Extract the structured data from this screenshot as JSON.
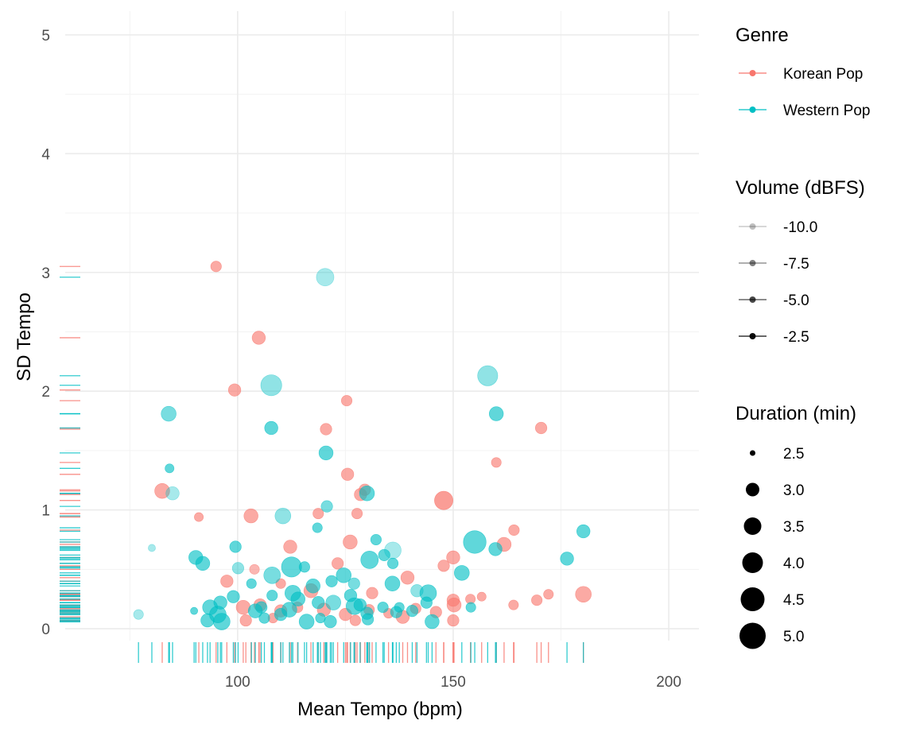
{
  "chart_data": {
    "type": "scatter",
    "xlabel": "Mean Tempo (bpm)",
    "ylabel": "SD Tempo",
    "xlim": [
      60,
      207
    ],
    "ylim": [
      -0.1,
      5.2
    ],
    "x_ticks": [
      100,
      150,
      200
    ],
    "x_tick_labels": [
      "100",
      "150",
      "200"
    ],
    "y_ticks": [
      0,
      1,
      2,
      3,
      4,
      5
    ],
    "y_tick_labels": [
      "0",
      "1",
      "2",
      "3",
      "4",
      "5"
    ],
    "grid": true,
    "colors": {
      "Korean Pop": "#F8766D",
      "Western Pop": "#00BFC4"
    },
    "legend": {
      "genre": {
        "title": "Genre",
        "entries": [
          {
            "label": "Korean Pop",
            "color": "#F8766D"
          },
          {
            "label": "Western Pop",
            "color": "#00BFC4"
          }
        ]
      },
      "volume": {
        "title": "Volume (dBFS)",
        "entries": [
          {
            "label": "-10.0",
            "value": -10.0
          },
          {
            "label": "-7.5",
            "value": -7.5
          },
          {
            "label": "-5.0",
            "value": -5.0
          },
          {
            "label": "-2.5",
            "value": -2.5
          }
        ]
      },
      "duration": {
        "title": "Duration (min)",
        "entries": [
          {
            "label": "2.5",
            "value": 2.5
          },
          {
            "label": "3.0",
            "value": 3.0
          },
          {
            "label": "3.5",
            "value": 3.5
          },
          {
            "label": "4.0",
            "value": 4.0
          },
          {
            "label": "4.5",
            "value": 4.5
          },
          {
            "label": "5.0",
            "value": 5.0
          }
        ]
      }
    },
    "series": [
      {
        "name": "Korean Pop",
        "points": [
          [
            95.0,
            3.05,
            3.1,
            -6
          ],
          [
            104.9,
            2.45,
            3.4,
            -6
          ],
          [
            99.3,
            2.01,
            3.3,
            -6
          ],
          [
            125.3,
            1.92,
            3.1,
            -6
          ],
          [
            120.5,
            1.68,
            3.2,
            -6
          ],
          [
            170.4,
            1.69,
            3.2,
            -6
          ],
          [
            160.0,
            1.4,
            3.0,
            -6
          ],
          [
            125.5,
            1.3,
            3.3,
            -6
          ],
          [
            82.5,
            1.16,
            3.6,
            -6
          ],
          [
            129.5,
            1.17,
            3.2,
            -6
          ],
          [
            128.5,
            1.13,
            3.3,
            -6
          ],
          [
            147.8,
            1.08,
            4.0,
            -5
          ],
          [
            103.1,
            0.95,
            3.5,
            -6
          ],
          [
            91.0,
            0.94,
            2.9,
            -6
          ],
          [
            118.7,
            0.97,
            3.1,
            -6
          ],
          [
            127.7,
            0.97,
            3.1,
            -6
          ],
          [
            164.1,
            0.83,
            3.1,
            -6
          ],
          [
            126.1,
            0.73,
            3.5,
            -6
          ],
          [
            161.8,
            0.71,
            3.5,
            -6
          ],
          [
            112.2,
            0.69,
            3.4,
            -6
          ],
          [
            150.0,
            0.6,
            3.4,
            -6
          ],
          [
            123.2,
            0.55,
            3.2,
            -6
          ],
          [
            147.8,
            0.53,
            3.2,
            -6
          ],
          [
            103.9,
            0.5,
            3.0,
            -7
          ],
          [
            139.4,
            0.43,
            3.4,
            -6
          ],
          [
            97.5,
            0.4,
            3.3,
            -6
          ],
          [
            110.0,
            0.38,
            3.0,
            -6
          ],
          [
            131.2,
            0.3,
            3.2,
            -6
          ],
          [
            117.0,
            0.32,
            3.5,
            -6
          ],
          [
            172.1,
            0.29,
            3.0,
            -6
          ],
          [
            180.2,
            0.29,
            3.7,
            -6
          ],
          [
            169.4,
            0.24,
            3.1,
            -6
          ],
          [
            156.6,
            0.27,
            2.9,
            -6
          ],
          [
            154.0,
            0.25,
            3.0,
            -6
          ],
          [
            150.0,
            0.24,
            3.3,
            -6
          ],
          [
            164.0,
            0.2,
            3.0,
            -6
          ],
          [
            150.2,
            0.2,
            3.5,
            -6
          ],
          [
            101.3,
            0.18,
            3.5,
            -6
          ],
          [
            105.2,
            0.2,
            3.3,
            -6
          ],
          [
            110.0,
            0.15,
            3.3,
            -6
          ],
          [
            113.9,
            0.18,
            3.1,
            -6
          ],
          [
            120.0,
            0.16,
            3.4,
            -6
          ],
          [
            125.0,
            0.12,
            3.3,
            -6
          ],
          [
            130.5,
            0.16,
            3.1,
            -6
          ],
          [
            138.3,
            0.1,
            3.4,
            -6
          ],
          [
            141.3,
            0.17,
            3.1,
            -6
          ],
          [
            146.0,
            0.14,
            3.2,
            -6
          ],
          [
            101.9,
            0.07,
            3.2,
            -6
          ],
          [
            108.2,
            0.09,
            3.0,
            -6
          ],
          [
            127.3,
            0.07,
            3.1,
            -6
          ],
          [
            150.0,
            0.07,
            3.2,
            -6
          ],
          [
            135.0,
            0.13,
            3.0,
            -6
          ]
        ]
      },
      {
        "name": "Western Pop",
        "points": [
          [
            120.3,
            2.96,
            3.9,
            -9
          ],
          [
            107.8,
            2.05,
            4.3,
            -8
          ],
          [
            158.0,
            2.13,
            4.2,
            -8
          ],
          [
            84.0,
            1.81,
            3.6,
            -7
          ],
          [
            107.8,
            1.69,
            3.4,
            -6
          ],
          [
            160.0,
            1.81,
            3.5,
            -6
          ],
          [
            120.5,
            1.48,
            3.5,
            -6
          ],
          [
            84.2,
            1.35,
            2.9,
            -6
          ],
          [
            84.9,
            1.14,
            3.4,
            -9
          ],
          [
            130.0,
            1.14,
            3.6,
            -6
          ],
          [
            120.7,
            1.03,
            3.2,
            -7
          ],
          [
            110.5,
            0.95,
            3.7,
            -8
          ],
          [
            118.5,
            0.85,
            3.0,
            -6
          ],
          [
            80.1,
            0.68,
            2.7,
            -9
          ],
          [
            99.5,
            0.69,
            3.2,
            -6
          ],
          [
            132.1,
            0.75,
            3.1,
            -6
          ],
          [
            136.0,
            0.66,
            3.8,
            -9
          ],
          [
            155.0,
            0.73,
            4.5,
            -6
          ],
          [
            159.8,
            0.67,
            3.4,
            -6
          ],
          [
            180.2,
            0.82,
            3.4,
            -6
          ],
          [
            90.3,
            0.6,
            3.5,
            -6
          ],
          [
            91.9,
            0.55,
            3.5,
            -6
          ],
          [
            130.6,
            0.58,
            3.9,
            -6
          ],
          [
            176.4,
            0.59,
            3.4,
            -6
          ],
          [
            134.0,
            0.62,
            3.2,
            -6
          ],
          [
            100.1,
            0.51,
            3.2,
            -8
          ],
          [
            108.0,
            0.45,
            3.8,
            -7
          ],
          [
            112.5,
            0.52,
            4.2,
            -6
          ],
          [
            115.5,
            0.52,
            3.1,
            -6
          ],
          [
            136.0,
            0.55,
            3.1,
            -6
          ],
          [
            152.0,
            0.47,
            3.6,
            -6
          ],
          [
            121.8,
            0.4,
            3.2,
            -6
          ],
          [
            124.6,
            0.45,
            3.6,
            -6
          ],
          [
            127.0,
            0.38,
            3.2,
            -7
          ],
          [
            103.2,
            0.38,
            3.0,
            -6
          ],
          [
            112.8,
            0.3,
            3.7,
            -6
          ],
          [
            117.5,
            0.36,
            3.5,
            -6
          ],
          [
            135.9,
            0.38,
            3.6,
            -6
          ],
          [
            141.6,
            0.32,
            3.3,
            -8
          ],
          [
            99.0,
            0.27,
            3.3,
            -6
          ],
          [
            108.0,
            0.28,
            3.1,
            -6
          ],
          [
            96.0,
            0.22,
            3.4,
            -6
          ],
          [
            114.0,
            0.25,
            3.5,
            -6
          ],
          [
            126.2,
            0.28,
            3.3,
            -6
          ],
          [
            143.8,
            0.22,
            3.2,
            -6
          ],
          [
            144.2,
            0.3,
            3.8,
            -6
          ],
          [
            93.6,
            0.18,
            3.6,
            -6
          ],
          [
            105.5,
            0.18,
            3.2,
            -6
          ],
          [
            110.0,
            0.12,
            3.3,
            -6
          ],
          [
            118.7,
            0.22,
            3.3,
            -6
          ],
          [
            122.2,
            0.22,
            3.6,
            -7
          ],
          [
            128.4,
            0.2,
            3.3,
            -6
          ],
          [
            133.7,
            0.18,
            3.1,
            -6
          ],
          [
            137.5,
            0.18,
            3.0,
            -6
          ],
          [
            154.1,
            0.18,
            3.0,
            -6
          ],
          [
            77.0,
            0.12,
            3.0,
            -9
          ],
          [
            89.9,
            0.15,
            2.7,
            -6
          ],
          [
            95.4,
            0.12,
            3.8,
            -6
          ],
          [
            104.1,
            0.15,
            3.5,
            -6
          ],
          [
            112.0,
            0.16,
            3.6,
            -6
          ],
          [
            119.2,
            0.09,
            3.0,
            -6
          ],
          [
            127.1,
            0.19,
            3.8,
            -6
          ],
          [
            130.0,
            0.13,
            3.3,
            -6
          ],
          [
            136.8,
            0.14,
            3.2,
            -6
          ],
          [
            140.5,
            0.15,
            3.2,
            -6
          ],
          [
            93.0,
            0.07,
            3.4,
            -6
          ],
          [
            96.3,
            0.06,
            3.8,
            -6
          ],
          [
            106.2,
            0.09,
            3.1,
            -6
          ],
          [
            116.0,
            0.06,
            3.6,
            -6
          ],
          [
            121.5,
            0.06,
            3.3,
            -6
          ],
          [
            130.2,
            0.08,
            3.2,
            -6
          ],
          [
            145.1,
            0.06,
            3.5,
            -6
          ]
        ]
      }
    ]
  }
}
